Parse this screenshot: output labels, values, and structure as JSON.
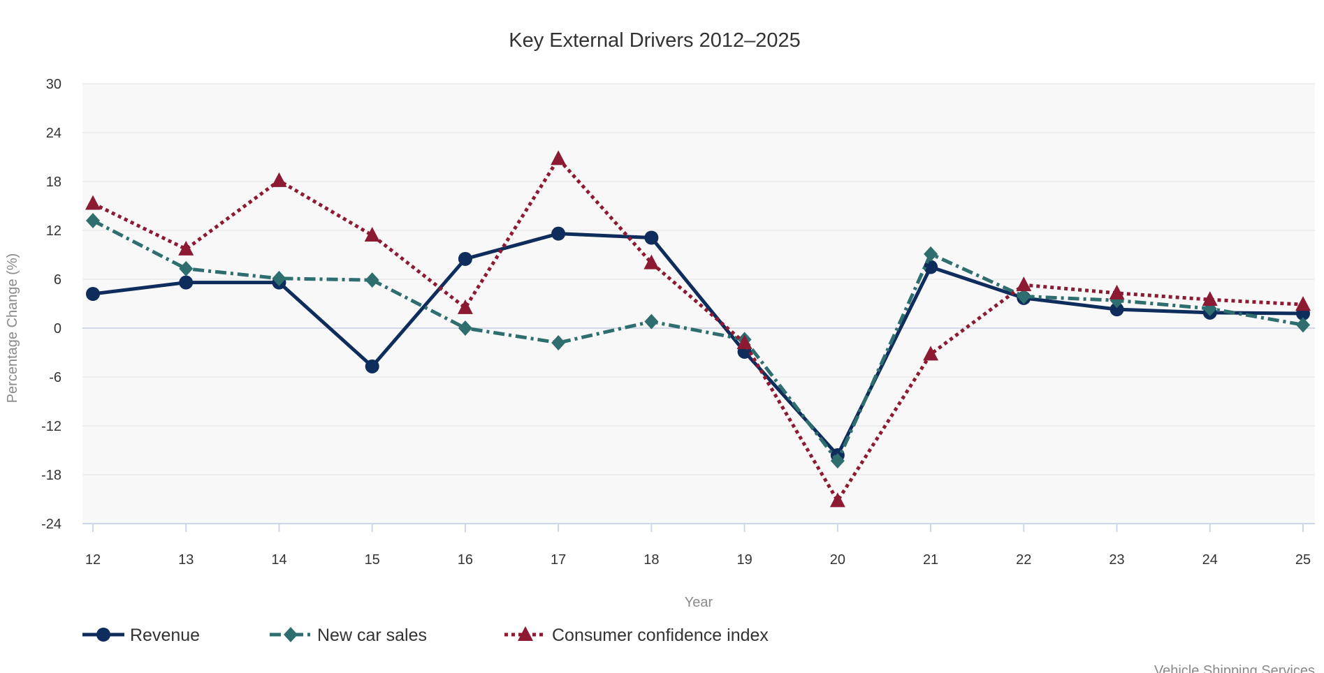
{
  "chart_data": {
    "type": "line",
    "title": "Key External Drivers 2012–2025",
    "xlabel": "Year",
    "ylabel": "Percentage Change (%)",
    "categories": [
      "12",
      "13",
      "14",
      "15",
      "16",
      "17",
      "18",
      "19",
      "20",
      "21",
      "22",
      "23",
      "24",
      "25"
    ],
    "ylim": [
      -24,
      30
    ],
    "yticks": [
      30,
      24,
      18,
      12,
      6,
      0,
      -6,
      -12,
      -18,
      -24
    ],
    "grid": true,
    "legend": "bottom-left",
    "series": [
      {
        "name": "Revenue",
        "color": "#0f2d5c",
        "marker": "circle",
        "dash": "solid",
        "values": [
          4.2,
          5.6,
          5.6,
          -4.7,
          8.5,
          11.6,
          11.1,
          -2.9,
          -15.6,
          7.5,
          3.7,
          2.3,
          1.9,
          1.8
        ]
      },
      {
        "name": "New car sales",
        "color": "#2e6e6e",
        "marker": "diamond",
        "dash": "dashdot",
        "values": [
          13.2,
          7.3,
          6.1,
          5.9,
          0.0,
          -1.8,
          0.8,
          -1.4,
          -16.3,
          9.1,
          3.9,
          3.4,
          2.4,
          0.4
        ]
      },
      {
        "name": "Consumer confidence index",
        "color": "#8b1a32",
        "marker": "triangle",
        "dash": "dotted",
        "values": [
          15.3,
          9.7,
          18.1,
          11.4,
          2.5,
          20.8,
          8.0,
          -1.8,
          -21.2,
          -3.2,
          5.3,
          4.3,
          3.5,
          2.9
        ]
      }
    ]
  },
  "credit": "Vehicle Shipping Services"
}
